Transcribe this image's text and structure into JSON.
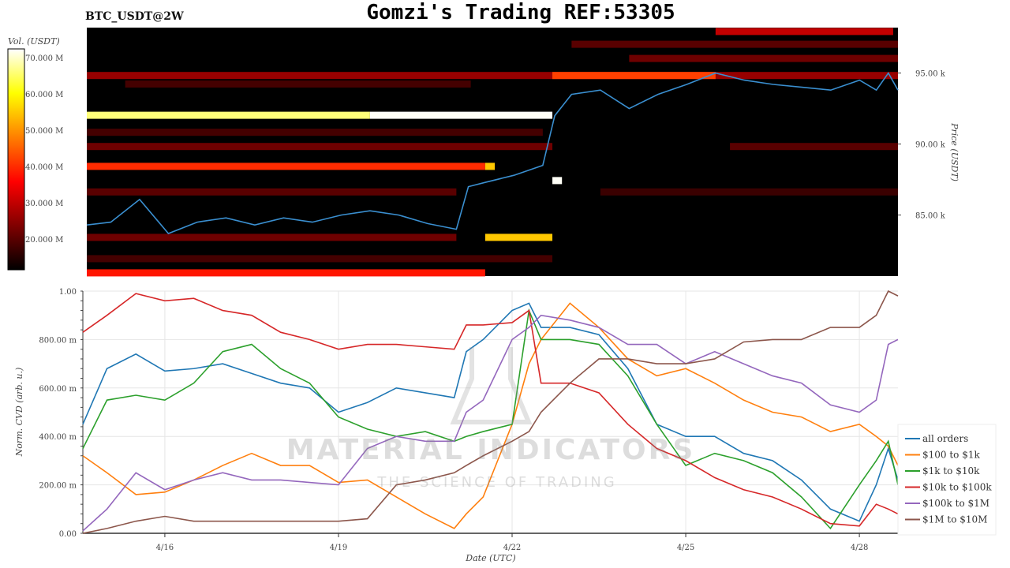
{
  "title": "Gomzi's Trading REF:53305",
  "watermark": {
    "name": "MATERIAL INDICATORS",
    "tagline": "THE SCIENCE OF TRADING"
  },
  "chart_data": [
    {
      "type": "heatmap",
      "title": "BTC_USDT@2W",
      "ylabel": "Price (USDT)",
      "colorbar_label": "Vol. (USDT)",
      "colormap": "hot",
      "colorbar_ticks": [
        "20.000 M",
        "30.000 M",
        "40.000 M",
        "50.000 M",
        "60.000 M",
        "70.000 M"
      ],
      "colorbar_range_M": [
        11.5,
        72.4
      ],
      "y_ticks": [
        "85.00 k",
        "90.00 k",
        "95.00 k"
      ],
      "ylim_k": [
        80.7,
        98.2
      ],
      "xlim": [
        "04-14 14:00",
        "04-28 16:00"
      ],
      "bands": [
        {
          "price_k": 97.9,
          "start": "04-25 12:00",
          "end": "04-28 14:00",
          "volume_M": 30
        },
        {
          "price_k": 97.0,
          "start": "04-23 00:00",
          "end": "04-28 16:00",
          "volume_M": 20
        },
        {
          "price_k": 96.0,
          "start": "04-24 00:00",
          "end": "04-28 16:00",
          "volume_M": 22
        },
        {
          "price_k": 94.8,
          "start": "04-14 14:00",
          "end": "04-28 16:00",
          "volume_M": 26
        },
        {
          "price_k": 94.8,
          "start": "04-22 16:00",
          "end": "04-25 12:00",
          "volume_M": 42
        },
        {
          "price_k": 94.2,
          "start": "04-15 06:00",
          "end": "04-21 06:00",
          "volume_M": 18
        },
        {
          "price_k": 92.0,
          "start": "04-14 14:00",
          "end": "04-19 12:00",
          "volume_M": 66
        },
        {
          "price_k": 92.0,
          "start": "04-19 12:00",
          "end": "04-22 16:00",
          "volume_M": 72
        },
        {
          "price_k": 90.8,
          "start": "04-14 14:00",
          "end": "04-22 12:00",
          "volume_M": 18
        },
        {
          "price_k": 89.8,
          "start": "04-14 14:00",
          "end": "04-22 16:00",
          "volume_M": 22
        },
        {
          "price_k": 89.8,
          "start": "04-25 18:00",
          "end": "04-28 16:00",
          "volume_M": 20
        },
        {
          "price_k": 88.4,
          "start": "04-14 14:00",
          "end": "04-21 12:00",
          "volume_M": 40
        },
        {
          "price_k": 88.4,
          "start": "04-21 12:00",
          "end": "04-21 16:00",
          "volume_M": 55
        },
        {
          "price_k": 87.4,
          "start": "04-22 16:00",
          "end": "04-22 20:00",
          "volume_M": 72
        },
        {
          "price_k": 86.6,
          "start": "04-14 14:00",
          "end": "04-21 00:00",
          "volume_M": 20
        },
        {
          "price_k": 86.6,
          "start": "04-23 12:00",
          "end": "04-28 16:00",
          "volume_M": 17
        },
        {
          "price_k": 83.4,
          "start": "04-14 14:00",
          "end": "04-21 00:00",
          "volume_M": 22
        },
        {
          "price_k": 83.4,
          "start": "04-21 12:00",
          "end": "04-22 16:00",
          "volume_M": 55
        },
        {
          "price_k": 81.9,
          "start": "04-14 14:00",
          "end": "04-22 16:00",
          "volume_M": 18
        },
        {
          "price_k": 80.9,
          "start": "04-14 14:00",
          "end": "04-21 12:00",
          "volume_M": 38
        }
      ],
      "price_series": {
        "color": "#3a8fd0",
        "x": [
          "04-14 14:00",
          "04-15 00:00",
          "04-15 12:00",
          "04-16 00:00",
          "04-16 12:00",
          "04-17 00:00",
          "04-17 12:00",
          "04-18 00:00",
          "04-18 12:00",
          "04-19 00:00",
          "04-19 12:00",
          "04-20 00:00",
          "04-20 12:00",
          "04-21 00:00",
          "04-21 05:00",
          "04-21 12:00",
          "04-22 00:00",
          "04-22 12:00",
          "04-22 17:00",
          "04-23 00:00",
          "04-23 12:00",
          "04-24 00:00",
          "04-24 12:00",
          "04-25 00:00",
          "04-25 12:00",
          "04-26 00:00",
          "04-26 12:00",
          "04-27 00:00",
          "04-27 12:00",
          "04-28 00:00",
          "04-28 07:00",
          "04-28 12:00",
          "04-28 16:00"
        ],
        "y_k": [
          84.3,
          84.5,
          86.1,
          83.7,
          84.5,
          84.8,
          84.3,
          84.8,
          84.5,
          85.0,
          85.3,
          85.0,
          84.4,
          84.0,
          87.0,
          87.3,
          87.8,
          88.5,
          92.0,
          93.5,
          93.8,
          92.5,
          93.5,
          94.2,
          95.0,
          94.5,
          94.2,
          94.0,
          93.8,
          94.5,
          93.8,
          95.0,
          93.8
        ]
      }
    },
    {
      "type": "line",
      "xlabel": "Date (UTC)",
      "ylabel": "Norm. CVD (arb. u.)",
      "x_ticks": [
        "4/16",
        "4/19",
        "4/22",
        "4/25",
        "4/28"
      ],
      "y_ticks": [
        "0.00",
        "200.00 m",
        "400.00 m",
        "600.00 m",
        "800.00 m",
        "1.00"
      ],
      "ylim": [
        0,
        1
      ],
      "xlim": [
        "04-14 14:00",
        "04-28 16:00"
      ],
      "grid": true,
      "legend": "right",
      "x": [
        "04-14 14:00",
        "04-15 00:00",
        "04-15 12:00",
        "04-16 00:00",
        "04-16 12:00",
        "04-17 00:00",
        "04-17 12:00",
        "04-18 00:00",
        "04-18 12:00",
        "04-19 00:00",
        "04-19 12:00",
        "04-20 00:00",
        "04-20 12:00",
        "04-21 00:00",
        "04-21 05:00",
        "04-21 12:00",
        "04-22 00:00",
        "04-22 07:00",
        "04-22 12:00",
        "04-23 00:00",
        "04-23 12:00",
        "04-24 00:00",
        "04-24 12:00",
        "04-25 00:00",
        "04-25 12:00",
        "04-26 00:00",
        "04-26 12:00",
        "04-27 00:00",
        "04-27 12:00",
        "04-28 00:00",
        "04-28 07:00",
        "04-28 12:00",
        "04-28 16:00"
      ],
      "series": [
        {
          "name": "all orders",
          "color": "#1f77b4",
          "values": [
            0.45,
            0.68,
            0.74,
            0.67,
            0.68,
            0.7,
            0.66,
            0.62,
            0.6,
            0.5,
            0.54,
            0.6,
            0.58,
            0.56,
            0.75,
            0.8,
            0.92,
            0.95,
            0.85,
            0.85,
            0.82,
            0.68,
            0.45,
            0.4,
            0.4,
            0.33,
            0.3,
            0.22,
            0.1,
            0.05,
            0.2,
            0.35,
            0.22
          ]
        },
        {
          "name": "$100 to $1k",
          "color": "#ff7f0e",
          "values": [
            0.32,
            0.25,
            0.16,
            0.17,
            0.22,
            0.28,
            0.33,
            0.28,
            0.28,
            0.21,
            0.22,
            0.15,
            0.08,
            0.02,
            0.08,
            0.15,
            0.45,
            0.7,
            0.8,
            0.95,
            0.85,
            0.72,
            0.65,
            0.68,
            0.62,
            0.55,
            0.5,
            0.48,
            0.42,
            0.45,
            0.4,
            0.36,
            0.28
          ]
        },
        {
          "name": "$1k to $10k",
          "color": "#2ca02c",
          "values": [
            0.35,
            0.55,
            0.57,
            0.55,
            0.62,
            0.75,
            0.78,
            0.68,
            0.62,
            0.48,
            0.43,
            0.4,
            0.42,
            0.38,
            0.4,
            0.42,
            0.45,
            0.92,
            0.8,
            0.8,
            0.78,
            0.65,
            0.45,
            0.28,
            0.33,
            0.3,
            0.25,
            0.15,
            0.02,
            0.2,
            0.3,
            0.38,
            0.2
          ]
        },
        {
          "name": "$10k to $100k",
          "color": "#d62728",
          "values": [
            0.83,
            0.9,
            0.99,
            0.96,
            0.97,
            0.92,
            0.9,
            0.83,
            0.8,
            0.76,
            0.78,
            0.78,
            0.77,
            0.76,
            0.86,
            0.86,
            0.87,
            0.92,
            0.62,
            0.62,
            0.58,
            0.45,
            0.35,
            0.3,
            0.23,
            0.18,
            0.15,
            0.1,
            0.04,
            0.03,
            0.12,
            0.1,
            0.08
          ]
        },
        {
          "name": "$100k to $1M",
          "color": "#9467bd",
          "values": [
            0.01,
            0.1,
            0.25,
            0.18,
            0.22,
            0.25,
            0.22,
            0.22,
            0.21,
            0.2,
            0.35,
            0.4,
            0.38,
            0.38,
            0.5,
            0.55,
            0.8,
            0.85,
            0.9,
            0.88,
            0.85,
            0.78,
            0.78,
            0.7,
            0.75,
            0.7,
            0.65,
            0.62,
            0.53,
            0.5,
            0.55,
            0.78,
            0.8
          ]
        },
        {
          "name": "$1M to $10M",
          "color": "#8c564b",
          "values": [
            0.0,
            0.02,
            0.05,
            0.07,
            0.05,
            0.05,
            0.05,
            0.05,
            0.05,
            0.05,
            0.06,
            0.2,
            0.22,
            0.25,
            0.28,
            0.32,
            0.38,
            0.42,
            0.5,
            0.62,
            0.72,
            0.72,
            0.7,
            0.7,
            0.72,
            0.79,
            0.8,
            0.8,
            0.85,
            0.85,
            0.9,
            1.0,
            0.98
          ]
        }
      ]
    }
  ]
}
